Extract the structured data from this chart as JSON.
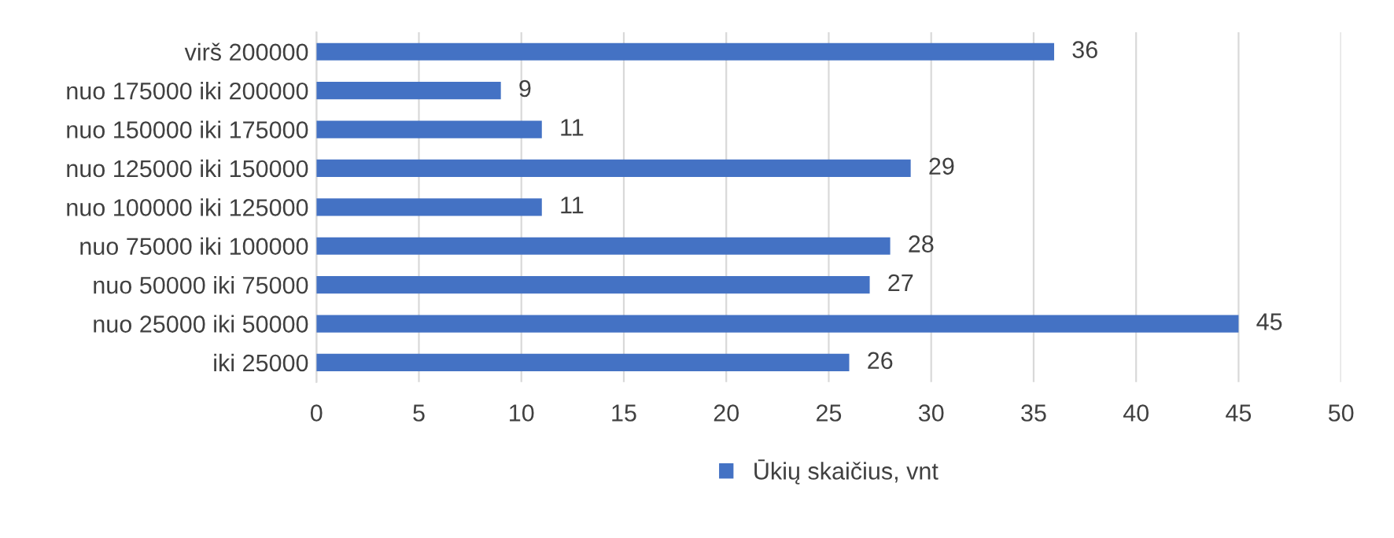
{
  "chart_data": {
    "type": "bar",
    "orientation": "horizontal",
    "categories": [
      "virš 200000",
      "nuo 175000 iki 200000",
      "nuo 150000 iki 175000",
      "nuo 125000 iki 150000",
      "nuo 100000 iki 125000",
      "nuo 75000 iki 100000",
      "nuo 50000 iki 75000",
      "nuo 25000 iki 50000",
      "iki 25000"
    ],
    "series": [
      {
        "name": "Ūkių skaičius, vnt",
        "color": "#4472c4",
        "values": [
          36,
          9,
          11,
          29,
          11,
          28,
          27,
          45,
          26
        ]
      }
    ],
    "xlim": [
      0,
      50
    ],
    "xticks": [
      0,
      5,
      10,
      15,
      20,
      25,
      30,
      35,
      40,
      45,
      50
    ],
    "grid": "x",
    "legend": "bottom",
    "data_labels": true
  }
}
